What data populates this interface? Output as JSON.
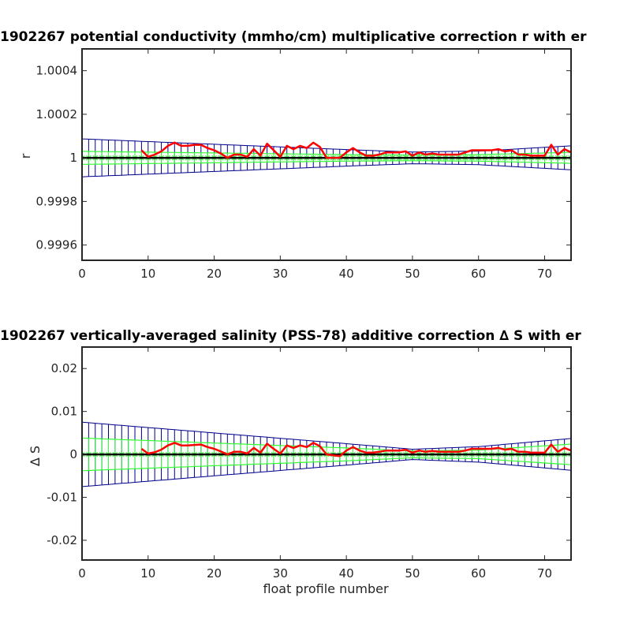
{
  "chart_data": [
    {
      "type": "line",
      "title": "1902267 potential conductivity (mmho/cm) multiplicative correction r with er",
      "xlabel": "",
      "ylabel": "r",
      "xlim": [
        0,
        74
      ],
      "ylim": [
        0.99953,
        1.0005
      ],
      "x_ticks": [
        0,
        10,
        20,
        30,
        40,
        50,
        60,
        70
      ],
      "x_tick_labels": [
        "0",
        "10",
        "20",
        "30",
        "40",
        "50",
        "60",
        "70"
      ],
      "y_ticks": [
        0.9996,
        0.9998,
        1.0,
        1.0002,
        1.0004
      ],
      "y_tick_labels": [
        "0.9996",
        "0.9998",
        "1",
        "1.0002",
        "1.0004"
      ],
      "reference_line": 1.0,
      "colors": {
        "correction": "#ff0000",
        "error_outer": "#00008b",
        "error_inner": "#33ff33",
        "reference": "#000000"
      },
      "series": [
        {
          "x": [
            9,
            10,
            11,
            12,
            13,
            14,
            15,
            16,
            17,
            18,
            19,
            20,
            21,
            22,
            23,
            24,
            25,
            26,
            27,
            28,
            29,
            30,
            31,
            32,
            33,
            34,
            35,
            36,
            37,
            38,
            39,
            40,
            41,
            42,
            43,
            44,
            45,
            46,
            47,
            48,
            49,
            50,
            51,
            52,
            53,
            54,
            55,
            56,
            57,
            58,
            59,
            60,
            61,
            62,
            63,
            64,
            65,
            66,
            67,
            68,
            69,
            70,
            71,
            72,
            73,
            74
          ],
          "values": [
            1.000035,
            1.000005,
            1.000015,
            1.00003,
            1.000055,
            1.00007,
            1.000055,
            1.000055,
            1.00006,
            1.00006,
            1.000045,
            1.000035,
            1.00002,
            1.0,
            1.000015,
            1.000015,
            1.000005,
            1.00004,
            1.00001,
            1.000065,
            1.000035,
            1.000005,
            1.000055,
            1.00004,
            1.000055,
            1.000045,
            1.00007,
            1.00005,
            1.0,
            1.0,
            1.0,
            1.000025,
            1.000045,
            1.000025,
            1.00001,
            1.00001,
            1.000015,
            1.000025,
            1.000025,
            1.000025,
            1.00003,
            1.00001,
            1.000025,
            1.000015,
            1.00002,
            1.000015,
            1.000015,
            1.000015,
            1.000015,
            1.000025,
            1.000035,
            1.000035,
            1.000035,
            1.000035,
            1.00004,
            1.00003,
            1.000035,
            1.000015,
            1.000015,
            1.00001,
            1.00001,
            1.00001,
            1.00006,
            1.000015,
            1.00004,
            1.000025
          ]
        }
      ],
      "error_bounds": {
        "x": [
          0,
          40,
          50,
          60,
          74
        ],
        "outer": [
          8.7e-05,
          3.8e-05,
          2.7e-05,
          3.1e-05,
          5.5e-05
        ],
        "inner": [
          3e-05,
          1.5e-05,
          1.3e-05,
          1.5e-05,
          2.5e-05
        ]
      }
    },
    {
      "type": "line",
      "title": "1902267 vertically-averaged salinity (PSS-78) additive correction ∆ S with er",
      "xlabel": "float profile number",
      "ylabel": "∆ S",
      "xlim": [
        0,
        74
      ],
      "ylim": [
        -0.0246,
        0.025
      ],
      "x_ticks": [
        0,
        10,
        20,
        30,
        40,
        50,
        60,
        70
      ],
      "x_tick_labels": [
        "0",
        "10",
        "20",
        "30",
        "40",
        "50",
        "60",
        "70"
      ],
      "y_ticks": [
        -0.02,
        -0.01,
        0,
        0.01,
        0.02
      ],
      "y_tick_labels": [
        "-0.02",
        "-0.01",
        "0",
        "0.01",
        "0.02"
      ],
      "reference_line": 0,
      "colors": {
        "correction": "#ff0000",
        "error_outer": "#00008b",
        "error_inner": "#33ff33",
        "reference": "#000000"
      },
      "series": [
        {
          "x": [
            9,
            10,
            11,
            12,
            13,
            14,
            15,
            16,
            17,
            18,
            19,
            20,
            21,
            22,
            23,
            24,
            25,
            26,
            27,
            28,
            29,
            30,
            31,
            32,
            33,
            34,
            35,
            36,
            37,
            38,
            39,
            40,
            41,
            42,
            43,
            44,
            45,
            46,
            47,
            48,
            49,
            50,
            51,
            52,
            53,
            54,
            55,
            56,
            57,
            58,
            59,
            60,
            61,
            62,
            63,
            64,
            65,
            66,
            67,
            68,
            69,
            70,
            71,
            72,
            73,
            74
          ],
          "values": [
            0.0013,
            0.0002,
            0.0005,
            0.0011,
            0.0021,
            0.0027,
            0.0021,
            0.0021,
            0.0022,
            0.0023,
            0.0017,
            0.0013,
            0.0007,
            0.0,
            0.0006,
            0.0006,
            0.0002,
            0.0015,
            0.0004,
            0.0025,
            0.0013,
            0.0002,
            0.0021,
            0.0015,
            0.0021,
            0.0017,
            0.0027,
            0.0019,
            0.0,
            -0.0002,
            -0.0004,
            0.0009,
            0.0017,
            0.0009,
            0.0004,
            0.0004,
            0.0006,
            0.0009,
            0.0009,
            0.0009,
            0.0011,
            0.0004,
            0.0009,
            0.0006,
            0.0008,
            0.0006,
            0.0006,
            0.0006,
            0.0006,
            0.0009,
            0.0013,
            0.0013,
            0.0013,
            0.0013,
            0.0015,
            0.0011,
            0.0013,
            0.0006,
            0.0006,
            0.0004,
            0.0004,
            0.0004,
            0.0023,
            0.0006,
            0.0015,
            0.0009
          ]
        }
      ],
      "error_bounds": {
        "x": [
          0,
          40,
          50,
          60,
          74
        ],
        "outer": [
          0.0075,
          0.0025,
          0.0012,
          0.0018,
          0.0037
        ],
        "inner": [
          0.0038,
          0.0015,
          0.0008,
          0.001,
          0.0024
        ]
      }
    }
  ]
}
